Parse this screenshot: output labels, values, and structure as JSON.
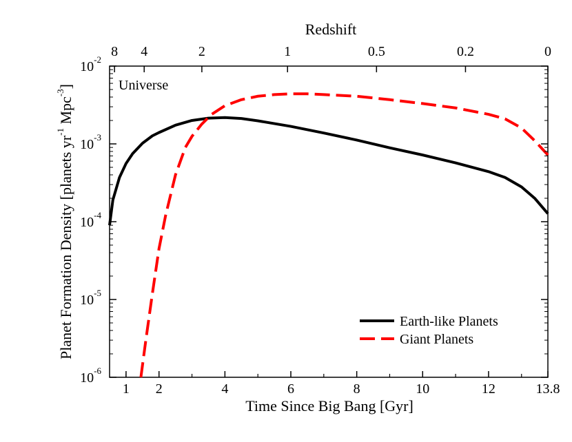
{
  "chart_data": {
    "type": "line",
    "xlabel": "Time Since Big Bang [Gyr]",
    "ylabel": "Planet Formation Density [planets yr",
    "ylabel_exp1": "-1",
    "ylabel_mid": " Mpc",
    "ylabel_exp2": "-3",
    "ylabel_end": "]",
    "top_axis_label": "Redshift",
    "annotation": "Universe",
    "xlim": [
      0.5,
      13.8
    ],
    "ylim": [
      1e-06,
      0.01
    ],
    "y_scale": "log",
    "x_ticks": [
      {
        "value": 1,
        "label": "1"
      },
      {
        "value": 2,
        "label": "2"
      },
      {
        "value": 4,
        "label": "4"
      },
      {
        "value": 6,
        "label": "6"
      },
      {
        "value": 8,
        "label": "8"
      },
      {
        "value": 10,
        "label": "10"
      },
      {
        "value": 12,
        "label": "12"
      },
      {
        "value": 13.8,
        "label": "13.8"
      }
    ],
    "y_ticks": [
      {
        "value": 1e-06,
        "base": "10",
        "exp": "-6"
      },
      {
        "value": 1e-05,
        "base": "10",
        "exp": "-5"
      },
      {
        "value": 0.0001,
        "base": "10",
        "exp": "-4"
      },
      {
        "value": 0.001,
        "base": "10",
        "exp": "-3"
      },
      {
        "value": 0.01,
        "base": "10",
        "exp": "-2"
      }
    ],
    "top_ticks": [
      {
        "t": 0.65,
        "label": "8"
      },
      {
        "t": 1.55,
        "label": "4"
      },
      {
        "t": 3.3,
        "label": "2"
      },
      {
        "t": 5.9,
        "label": "1"
      },
      {
        "t": 8.6,
        "label": "0.5"
      },
      {
        "t": 11.3,
        "label": "0.2"
      },
      {
        "t": 13.8,
        "label": "0"
      }
    ],
    "legend_position": "bottom-right",
    "series": [
      {
        "name": "Earth-like Planets",
        "color": "#000000",
        "style": "solid",
        "x": [
          0.5,
          0.6,
          0.8,
          1.0,
          1.2,
          1.5,
          1.8,
          2.0,
          2.5,
          3.0,
          3.5,
          4.0,
          4.5,
          5.0,
          6.0,
          7.0,
          8.0,
          9.0,
          10.0,
          11.0,
          12.0,
          12.5,
          13.0,
          13.4,
          13.8
        ],
        "y": [
          9e-05,
          0.00019,
          0.00037,
          0.00056,
          0.00075,
          0.00102,
          0.00127,
          0.0014,
          0.00174,
          0.002,
          0.00214,
          0.00218,
          0.00212,
          0.00198,
          0.00168,
          0.00138,
          0.00112,
          0.00089,
          0.00072,
          0.00057,
          0.00044,
          0.00037,
          0.00028,
          0.0002,
          0.000127
        ]
      },
      {
        "name": "Giant Planets",
        "color": "#ff0000",
        "style": "dashed",
        "x": [
          1.45,
          1.6,
          1.8,
          2.0,
          2.2,
          2.5,
          2.8,
          3.0,
          3.3,
          3.6,
          4.0,
          4.5,
          5.0,
          5.5,
          6.0,
          6.5,
          7.0,
          8.0,
          9.0,
          10.0,
          11.0,
          12.0,
          12.5,
          13.0,
          13.4,
          13.8
        ],
        "y": [
          1e-06,
          3e-06,
          1.2e-05,
          4.5e-05,
          0.00012,
          0.0004,
          0.0009,
          0.00125,
          0.0018,
          0.0024,
          0.0031,
          0.0037,
          0.0041,
          0.0043,
          0.0044,
          0.0044,
          0.0043,
          0.0041,
          0.0037,
          0.0033,
          0.0029,
          0.0024,
          0.0021,
          0.0016,
          0.0011,
          0.00072
        ]
      }
    ]
  }
}
